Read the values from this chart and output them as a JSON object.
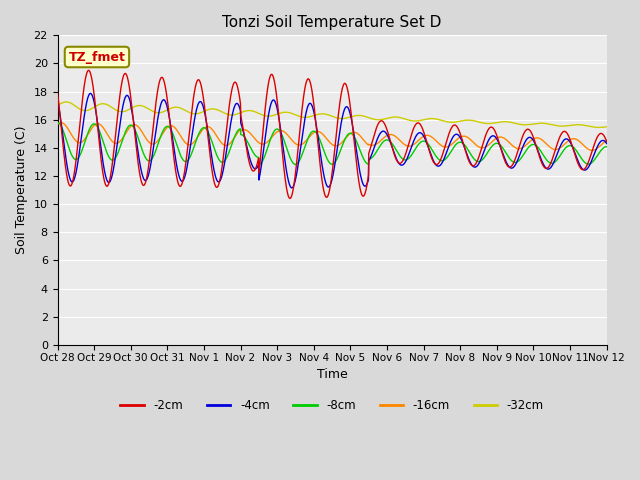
{
  "title": "Tonzi Soil Temperature Set D",
  "xlabel": "Time",
  "ylabel": "Soil Temperature (C)",
  "ylim": [
    0,
    22
  ],
  "yticks": [
    0,
    2,
    4,
    6,
    8,
    10,
    12,
    14,
    16,
    18,
    20,
    22
  ],
  "xtick_labels": [
    "Oct 28",
    "Oct 29",
    "Oct 30",
    "Oct 31",
    "Nov 1",
    "Nov 2",
    "Nov 3",
    "Nov 4",
    "Nov 5",
    "Nov 6",
    "Nov 7",
    "Nov 8",
    "Nov 9",
    "Nov 10",
    "Nov 11",
    "Nov 12"
  ],
  "series": {
    "-2cm": {
      "color": "#dd0000",
      "lw": 1.0
    },
    "-4cm": {
      "color": "#0000dd",
      "lw": 1.0
    },
    "-8cm": {
      "color": "#00cc00",
      "lw": 1.0
    },
    "-16cm": {
      "color": "#ff8800",
      "lw": 1.0
    },
    "-32cm": {
      "color": "#cccc00",
      "lw": 1.0
    }
  },
  "legend_label": "TZ_fmet",
  "bg_color": "#d9d9d9",
  "plot_bg": "#ebebeb",
  "grid_color": "#ffffff"
}
